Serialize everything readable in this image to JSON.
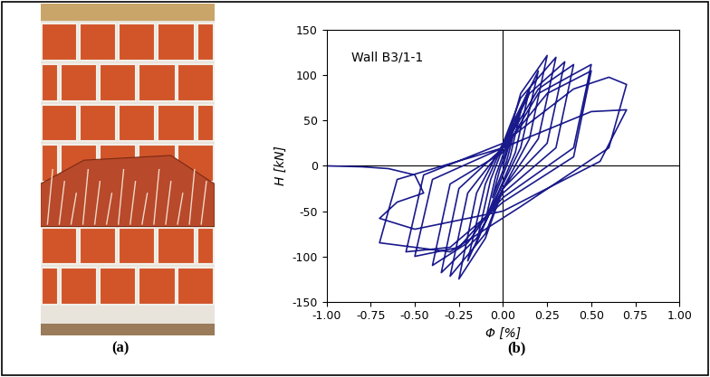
{
  "panels": {
    "a": "(a)",
    "b": "(b)"
  },
  "chart_data": {
    "type": "line",
    "annotation": "Wall B3/1-1",
    "x_label": "Φ [%]",
    "y_label": "H [kN]",
    "xlim": [
      -1.0,
      1.0
    ],
    "xticks": [
      {
        "value": -1.0,
        "label": "-1.00"
      },
      {
        "value": -0.75,
        "label": "-0.75"
      },
      {
        "value": -0.5,
        "label": "-0.50"
      },
      {
        "value": -0.25,
        "label": "-0.25"
      },
      {
        "value": 0.0,
        "label": "0.00"
      },
      {
        "value": 0.25,
        "label": "0.25"
      },
      {
        "value": 0.5,
        "label": "0.50"
      },
      {
        "value": 0.75,
        "label": "0.75"
      },
      {
        "value": 1.0,
        "label": "1.00"
      }
    ],
    "ylim": [
      -150,
      150
    ],
    "yticks": [
      -150,
      -100,
      -50,
      0,
      50,
      100,
      150
    ],
    "grid": false,
    "series": [
      {
        "color": "#1a1a8c",
        "x": [
          0,
          0.03,
          0.06,
          0.02,
          -0.03,
          -0.06,
          -0.02,
          0.05,
          0.1,
          0.04,
          -0.05,
          -0.1,
          -0.04,
          0.05,
          0.15,
          0.07,
          -0.05,
          -0.15,
          -0.07,
          0.05,
          0.2,
          0.1,
          -0.05,
          -0.2,
          -0.1,
          0.05,
          0.1,
          0.25,
          0.15,
          0.0,
          -0.1,
          -0.25,
          -0.15,
          0.0,
          0.1,
          0.3,
          0.2,
          0.0,
          -0.1,
          -0.3,
          -0.2,
          0.0,
          0.15,
          0.35,
          0.25,
          0.0,
          -0.15,
          -0.35,
          -0.25,
          0.0,
          0.2,
          0.4,
          0.3,
          0.0,
          -0.2,
          -0.4,
          -0.3,
          0.0,
          0.2,
          0.5,
          0.4,
          0.0,
          -0.25,
          -0.5,
          -0.4,
          0.0,
          0.25,
          0.5,
          0.4,
          0.0,
          -0.3,
          -0.55,
          -0.45,
          0.0,
          0.4,
          0.6,
          0.7,
          0.6,
          0.1,
          -0.3,
          -0.7,
          -0.6,
          0.0,
          0.5,
          0.7,
          0.55,
          0.0,
          -0.5,
          -0.7,
          -0.6,
          -0.45,
          -0.5,
          -0.65,
          -0.8,
          -1.0
        ],
        "values": [
          0,
          20,
          35,
          5,
          -20,
          -35,
          -5,
          35,
          60,
          10,
          -35,
          -60,
          -10,
          40,
          85,
          15,
          -40,
          -85,
          -15,
          45,
          105,
          20,
          -40,
          -105,
          -20,
          45,
          80,
          122,
          30,
          -25,
          -80,
          -125,
          -30,
          25,
          75,
          120,
          30,
          -25,
          -75,
          -122,
          -30,
          20,
          80,
          115,
          25,
          -25,
          -80,
          -118,
          -25,
          20,
          85,
          112,
          20,
          -30,
          -85,
          -110,
          -20,
          15,
          80,
          112,
          20,
          -35,
          -90,
          -100,
          -15,
          20,
          80,
          105,
          10,
          -40,
          -90,
          -95,
          -10,
          25,
          85,
          98,
          90,
          20,
          -45,
          -95,
          -85,
          -15,
          20,
          60,
          62,
          5,
          -50,
          -70,
          -58,
          -40,
          -30,
          -10,
          -3,
          -1,
          0
        ]
      }
    ]
  }
}
